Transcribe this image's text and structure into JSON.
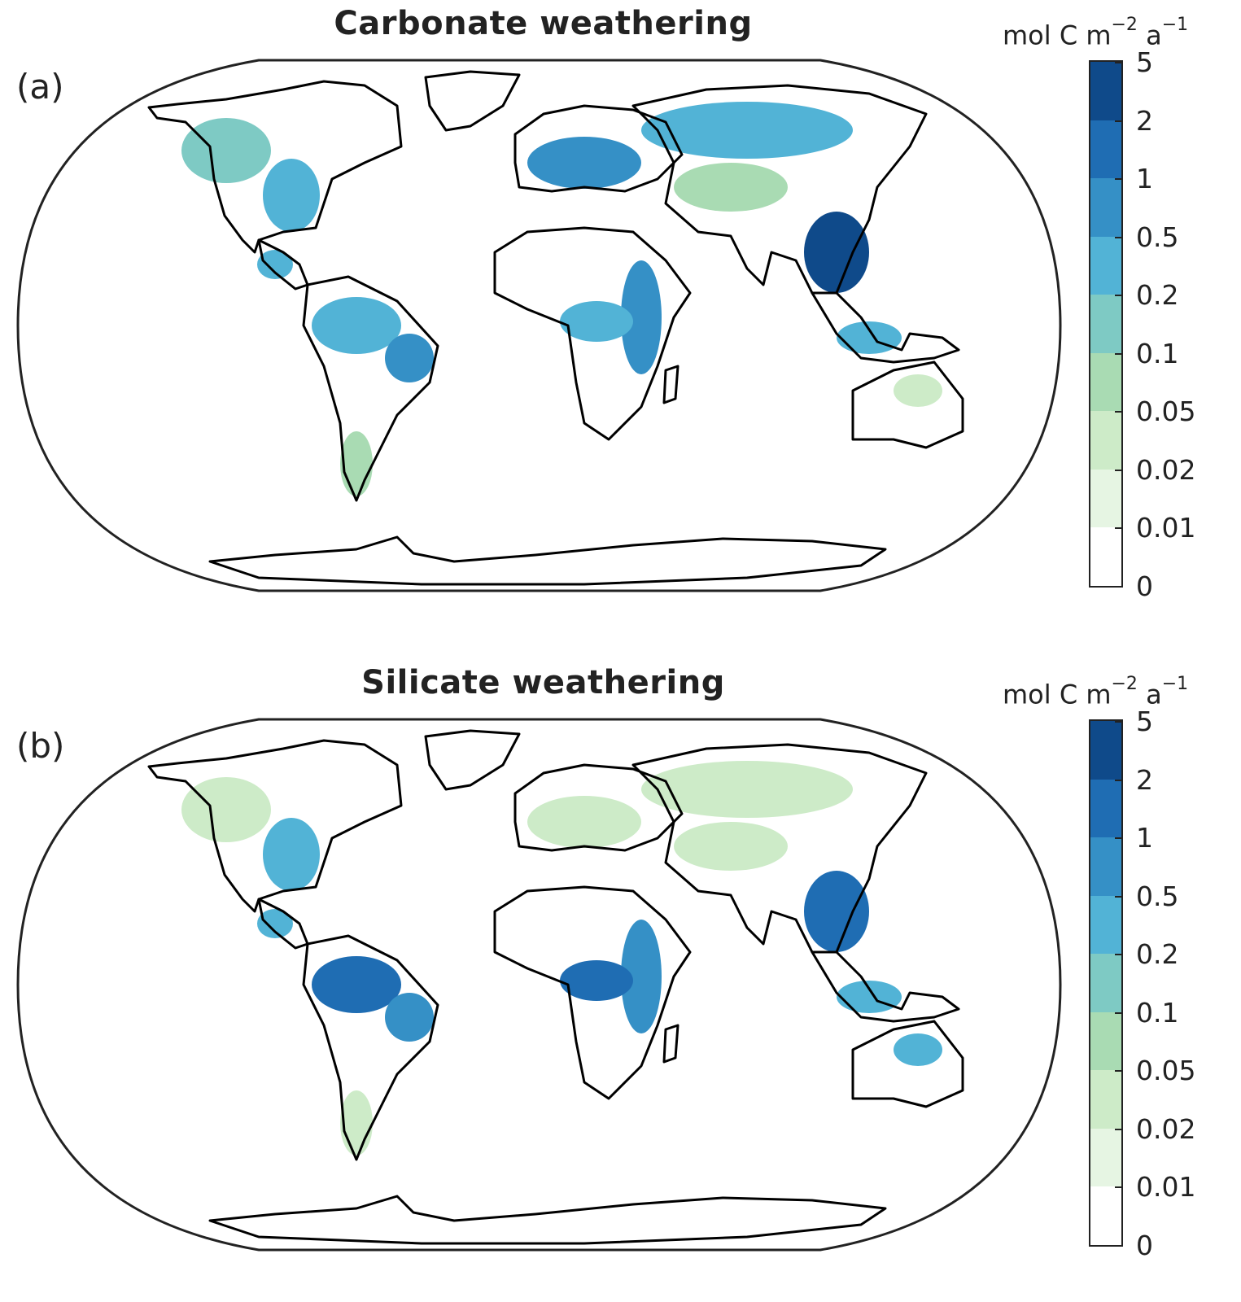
{
  "panels": [
    {
      "id": "a",
      "title": "Carbonate weathering",
      "label": "(a)",
      "colorbar": {
        "unit_main": "mol C m",
        "unit_exp1": "−2",
        "unit_mid": " a",
        "unit_exp2": "−1",
        "ticks": [
          "5",
          "2",
          "1",
          "0.5",
          "0.2",
          "0.1",
          "0.05",
          "0.02",
          "0.01",
          "0"
        ]
      },
      "regions": [
        {
          "name": "north-america",
          "level": 4
        },
        {
          "name": "eastern-us",
          "level": 5
        },
        {
          "name": "central-america",
          "level": 5
        },
        {
          "name": "amazon",
          "level": 5
        },
        {
          "name": "eastern-brazil",
          "level": 6
        },
        {
          "name": "patagonia",
          "level": 3
        },
        {
          "name": "europe",
          "level": 6
        },
        {
          "name": "siberia",
          "level": 5
        },
        {
          "name": "central-asia",
          "level": 3
        },
        {
          "name": "south-china",
          "level": 8
        },
        {
          "name": "east-africa",
          "level": 6
        },
        {
          "name": "central-africa",
          "level": 5
        },
        {
          "name": "southeast-asia",
          "level": 5
        },
        {
          "name": "australia",
          "level": 2
        }
      ]
    },
    {
      "id": "b",
      "title": "Silicate weathering",
      "label": "(b)",
      "colorbar": {
        "unit_main": "mol C m",
        "unit_exp1": "−2",
        "unit_mid": " a",
        "unit_exp2": "−1",
        "ticks": [
          "5",
          "2",
          "1",
          "0.5",
          "0.2",
          "0.1",
          "0.05",
          "0.02",
          "0.01",
          "0"
        ]
      },
      "regions": [
        {
          "name": "north-america",
          "level": 2
        },
        {
          "name": "eastern-us",
          "level": 5
        },
        {
          "name": "central-america",
          "level": 5
        },
        {
          "name": "amazon",
          "level": 7
        },
        {
          "name": "eastern-brazil",
          "level": 6
        },
        {
          "name": "patagonia",
          "level": 2
        },
        {
          "name": "europe",
          "level": 2
        },
        {
          "name": "siberia",
          "level": 2
        },
        {
          "name": "central-asia",
          "level": 2
        },
        {
          "name": "south-china",
          "level": 7
        },
        {
          "name": "east-africa",
          "level": 6
        },
        {
          "name": "central-africa",
          "level": 7
        },
        {
          "name": "southeast-asia",
          "level": 5
        },
        {
          "name": "australia",
          "level": 5
        }
      ]
    }
  ],
  "palette": [
    "#ffffff",
    "#e6f5e3",
    "#cdebc8",
    "#a9dbb3",
    "#7ecac4",
    "#52b3d6",
    "#3590c6",
    "#1f6db3",
    "#0f4a8a"
  ]
}
